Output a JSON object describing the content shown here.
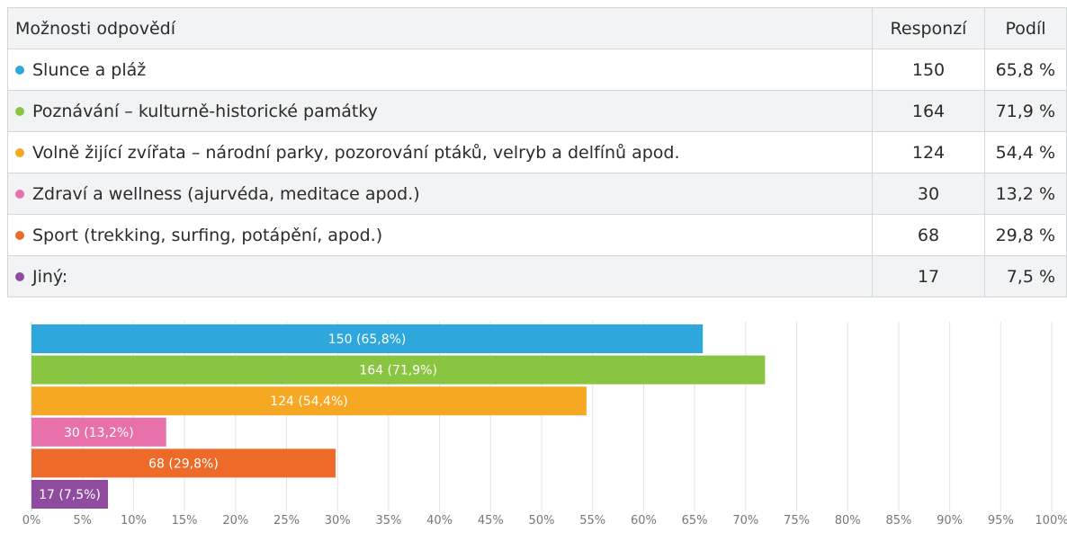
{
  "table": {
    "headers": {
      "option": "Možnosti odpovědí",
      "responses": "Responzí",
      "share": "Podíl"
    },
    "rows": [
      {
        "label": "Slunce a pláž",
        "responses": "150",
        "share": "65,8 %",
        "color": "#2ea8dc"
      },
      {
        "label": "Poznávání – kulturně-historické památky",
        "responses": "164",
        "share": "71,9 %",
        "color": "#8ac542"
      },
      {
        "label": "Volně žijící zvířata – národní parky, pozorování ptáků, velryb a delfínů apod.",
        "responses": "124",
        "share": "54,4 %",
        "color": "#f7a823"
      },
      {
        "label": "Zdraví a wellness (ajurvéda, meditace apod.)",
        "responses": "30",
        "share": "13,2 %",
        "color": "#e870ab"
      },
      {
        "label": "Sport (trekking, surfing, potápění, apod.)",
        "responses": "68",
        "share": "29,8 %",
        "color": "#ee6a28"
      },
      {
        "label": "Jiný:",
        "responses": "17",
        "share": "7,5 %",
        "color": "#8f4c9e"
      }
    ]
  },
  "chart_data": {
    "type": "bar",
    "orientation": "horizontal",
    "categories": [
      "Slunce a pláž",
      "Poznávání – kulturně-historické památky",
      "Volně žijící zvířata – národní parky, pozorování ptáků, velryb a delfínů apod.",
      "Zdraví a wellness (ajurvéda, meditace apod.)",
      "Sport (trekking, surfing, potápění, apod.)",
      "Jiný:"
    ],
    "values": [
      65.8,
      71.9,
      54.4,
      13.2,
      29.8,
      7.5
    ],
    "bar_labels": [
      "150 (65,8%)",
      "164 (71,9%)",
      "124 (54,4%)",
      "30 (13,2%)",
      "68 (29,8%)",
      "17 (7,5%)"
    ],
    "colors": [
      "#2ea8dc",
      "#8ac542",
      "#f7a823",
      "#e870ab",
      "#ee6a28",
      "#8f4c9e"
    ],
    "xlim": [
      0,
      100
    ],
    "x_ticks": [
      0,
      5,
      10,
      15,
      20,
      25,
      30,
      35,
      40,
      45,
      50,
      55,
      60,
      65,
      70,
      75,
      80,
      85,
      90,
      95,
      100
    ],
    "x_tick_labels": [
      "0%",
      "5%",
      "10%",
      "15%",
      "20%",
      "25%",
      "30%",
      "35%",
      "40%",
      "45%",
      "50%",
      "55%",
      "60%",
      "65%",
      "70%",
      "75%",
      "80%",
      "85%",
      "90%",
      "95%",
      "100%"
    ],
    "grid": true
  }
}
